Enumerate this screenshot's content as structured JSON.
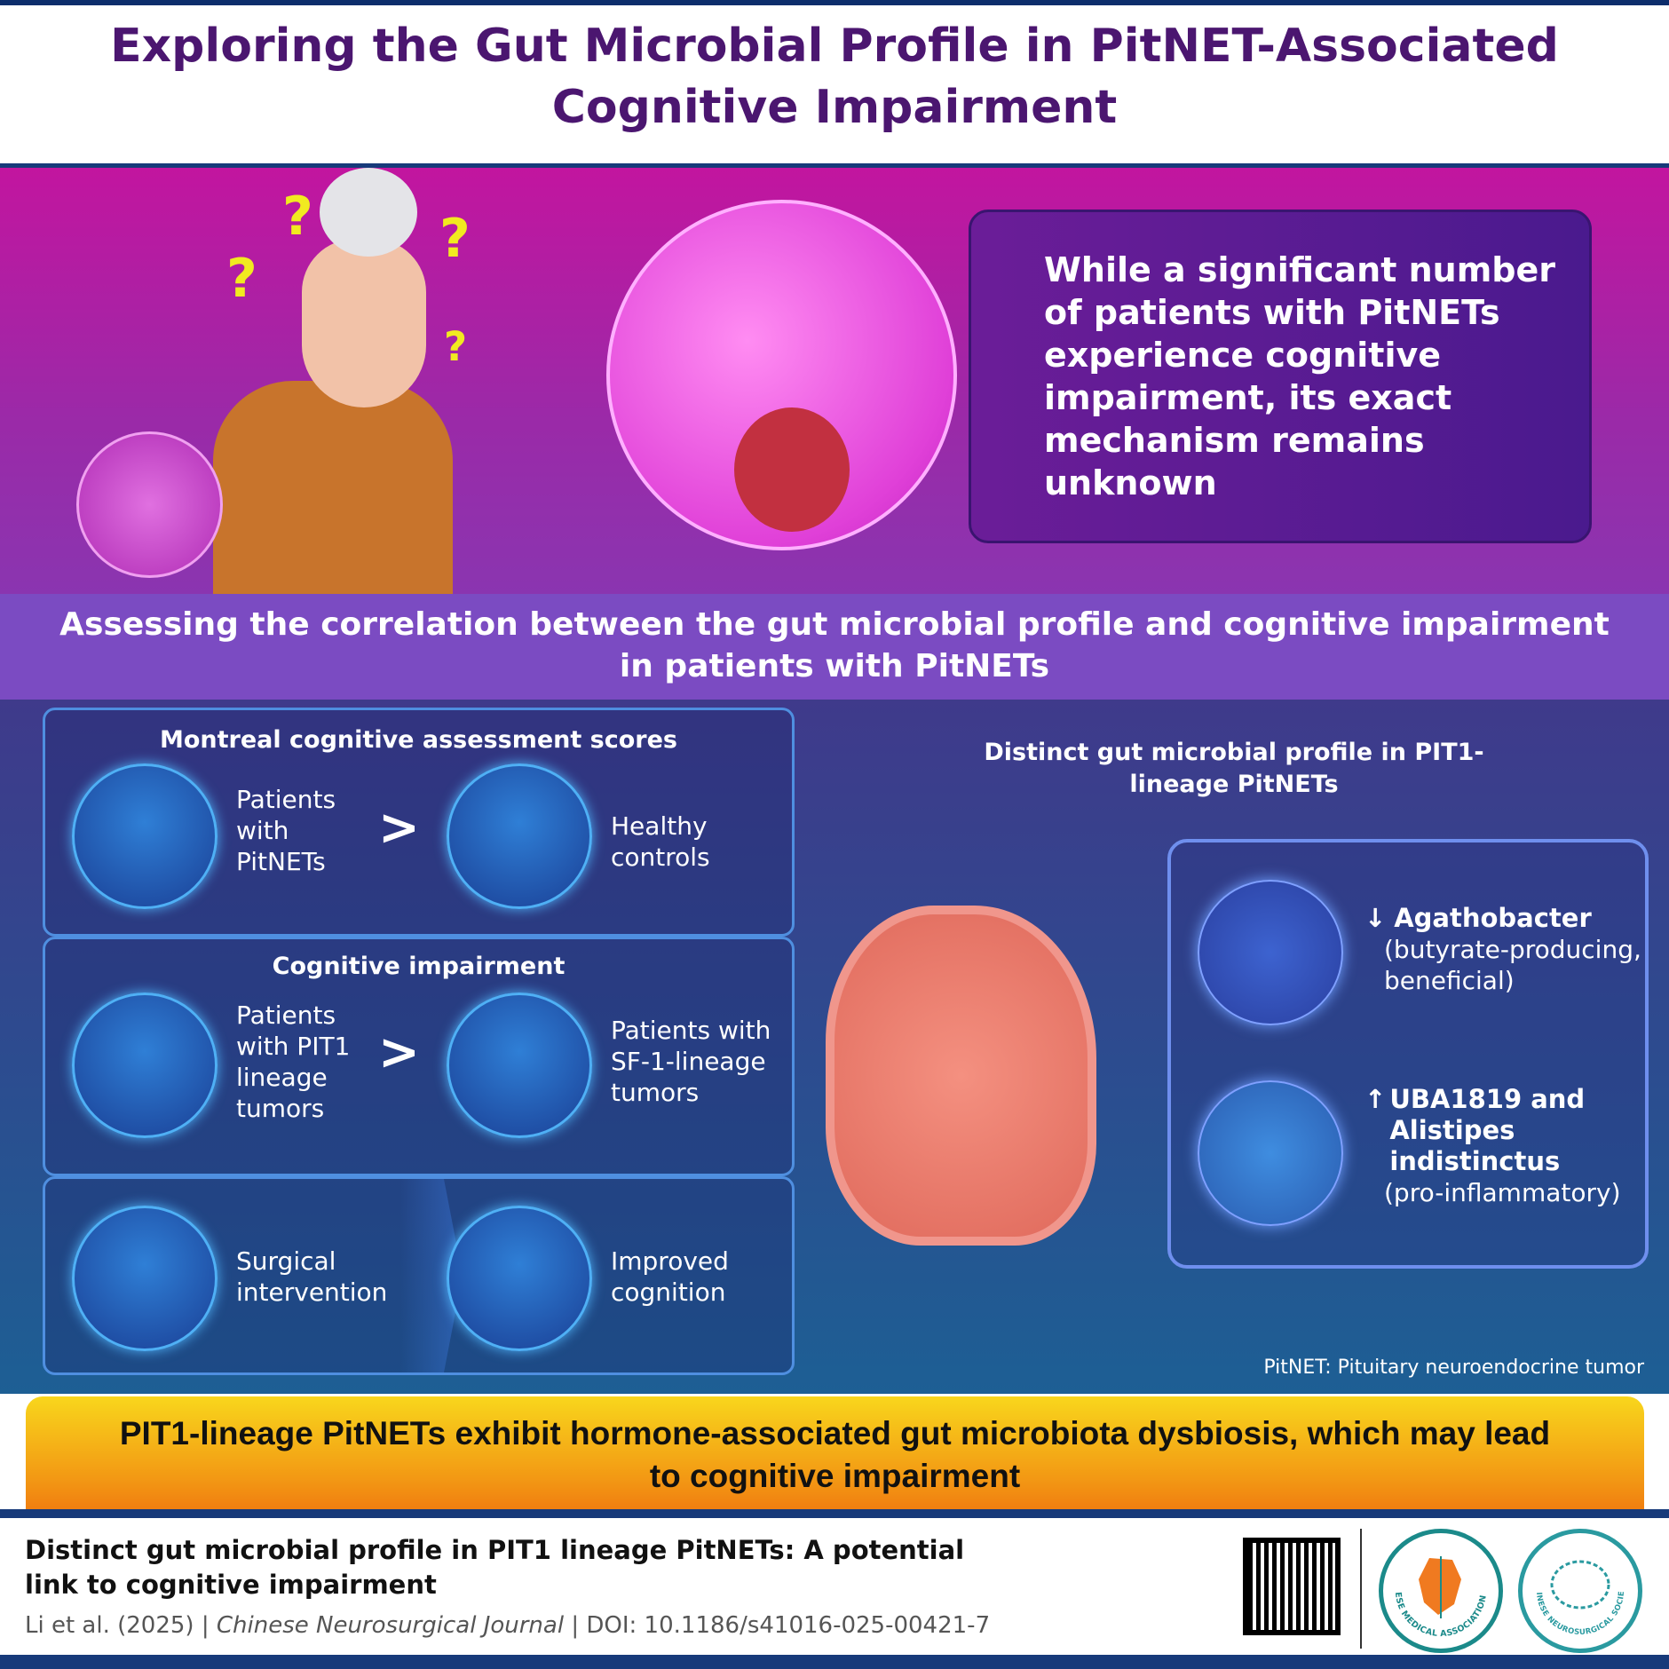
{
  "header": {
    "title_line1": "Exploring the Gut Microbial Profile in PitNET-Associated",
    "title_line2": "Cognitive Impairment"
  },
  "hero": {
    "text": "While a significant number of patients with PitNETs experience cognitive impairment, its exact mechanism remains unknown",
    "question_mark": "?"
  },
  "banner": {
    "line1": "Assessing the correlation between the gut microbial profile and cognitive impairment",
    "line2": "in patients with PitNETs"
  },
  "moca": {
    "heading": "Montreal cognitive assessment scores",
    "left": "Patients with PitNETs",
    "compare": ">",
    "right": "Healthy controls"
  },
  "cognitive": {
    "heading": "Cognitive impairment",
    "left": "Patients with PIT1 lineage tumors",
    "compare": ">",
    "right": "Patients with SF-1-lineage tumors"
  },
  "surgery": {
    "left": "Surgical intervention",
    "right": "Improved cognition"
  },
  "microbial": {
    "heading": "Distinct gut microbial profile in PIT1-lineage PitNETs",
    "items": [
      {
        "arrow": "↓",
        "name": "Agathobacter",
        "note": "(butyrate-producing, beneficial)"
      },
      {
        "arrow": "↑",
        "name": "UBA1819 and Alistipes indistinctus",
        "note": "(pro-inflammatory)"
      }
    ]
  },
  "footnote": "PitNET: Pituitary neuroendocrine tumor",
  "conclusion": {
    "line1": "PIT1-lineage PitNETs exhibit hormone-associated gut microbiota dysbiosis, which may lead",
    "line2": "to cognitive impairment"
  },
  "footer": {
    "title": "Distinct gut microbial profile in PIT1 lineage PitNETs: A potential link to cognitive impairment",
    "authors": "Li et al. (2025)",
    "sep": " | ",
    "journal": "Chinese Neurosurgical Journal",
    "doi": "DOI: 10.1186/s41016-025-00421-7",
    "logo1_text": "CHINESE MEDICAL ASSOCIATION 1915",
    "logo2_text": "CHINESE NEUROSURGICAL SOCIETY"
  },
  "colors": {
    "title": "#4b1670",
    "banner": "#7b4bc2",
    "accent_orange": "#f39a14",
    "accent_yellow": "#f8d61c"
  }
}
